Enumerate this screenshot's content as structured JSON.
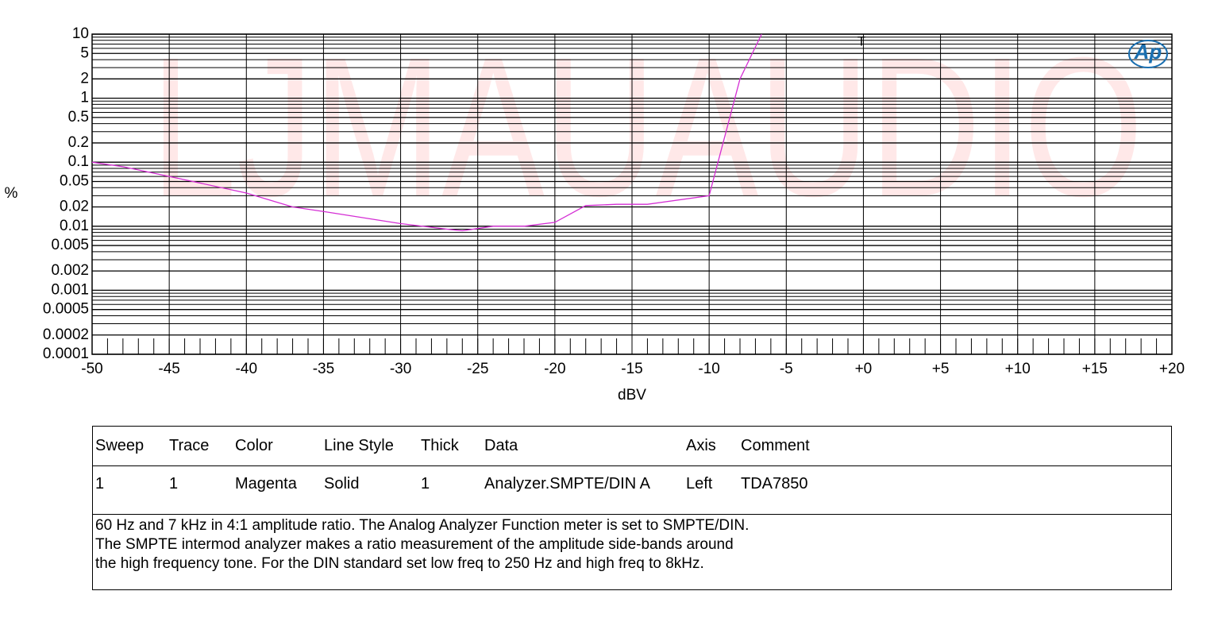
{
  "chart_data": {
    "type": "line",
    "y_label": "%",
    "x_label": "dBV",
    "watermark": "LJMAUAUDIO",
    "marker": "T",
    "logo": "Ap",
    "log_y": true,
    "grid": true,
    "x": [
      -50,
      -48,
      -45,
      -40,
      -37,
      -35,
      -30,
      -27,
      -26,
      -24,
      -22,
      -20,
      -18,
      -16,
      -14,
      -10,
      -8,
      -6.6
    ],
    "series": [
      {
        "color": "#d42ed4",
        "values": [
          0.1,
          0.085,
          0.06,
          0.033,
          0.02,
          0.017,
          0.011,
          0.009,
          0.0085,
          0.01,
          0.01,
          0.0115,
          0.021,
          0.022,
          0.022,
          0.03,
          2,
          10
        ]
      }
    ],
    "xlim": [
      -50,
      20
    ],
    "xticks": [
      -50,
      -45,
      -40,
      -35,
      -30,
      -25,
      -20,
      -15,
      -10,
      -5,
      {
        "value": 0,
        "label": "+0"
      },
      {
        "value": 5,
        "label": "+5"
      },
      {
        "value": 10,
        "label": "+10"
      },
      {
        "value": 15,
        "label": "+15"
      },
      {
        "value": 20,
        "label": "+20"
      }
    ],
    "ylim": [
      0.0001,
      10
    ],
    "yticks": [
      10,
      5,
      2,
      1,
      0.5,
      0.2,
      0.1,
      0.05,
      0.02,
      0.01,
      0.005,
      0.002,
      0.001,
      0.0005,
      0.0002,
      0.0001
    ]
  },
  "table": {
    "header": [
      "Sweep",
      "Trace",
      "Color",
      "Line Style",
      "Thick",
      "Data",
      "Axis",
      "Comment"
    ],
    "rows": [
      [
        "1",
        "1",
        "Magenta",
        "Solid",
        "1",
        "Analyzer.SMPTE/DIN A",
        "Left",
        "TDA7850"
      ]
    ],
    "note": [
      "60 Hz and 7 kHz in 4:1 amplitude ratio.  The Analog Analyzer Function meter is set to SMPTE/DIN.",
      "The SMPTE intermod analyzer makes a ratio measurement of the amplitude side-bands around",
      "the high frequency tone.  For the DIN standard set low freq to 250 Hz and high freq to 8kHz."
    ]
  }
}
